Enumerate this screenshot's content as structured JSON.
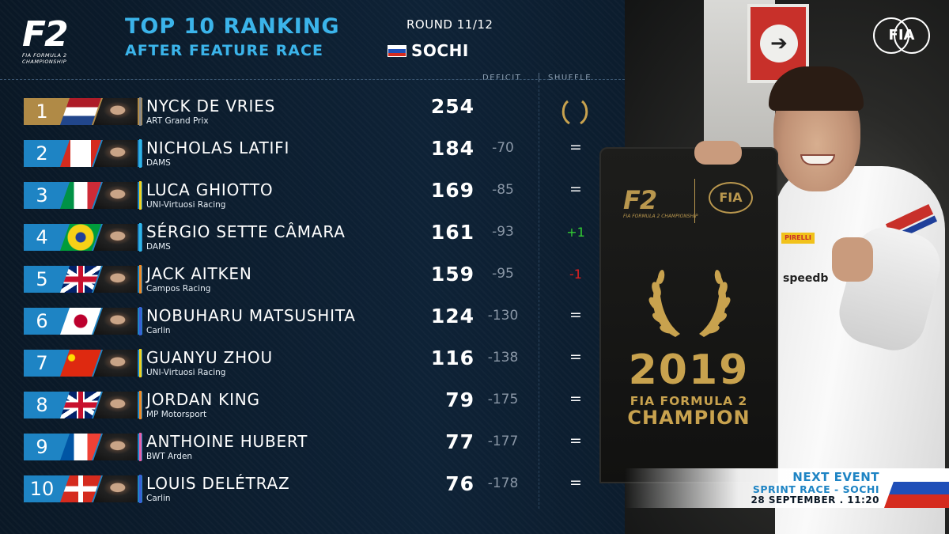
{
  "header": {
    "logo_mark": "F2",
    "logo_sub": "FIA FORMULA 2 CHAMPIONSHIP",
    "title": "TOP 10 RANKING",
    "round": "ROUND 11/12",
    "subtitle": "AFTER FEATURE RACE",
    "venue": "SOCHI",
    "fia_logo": "FIA"
  },
  "columns": {
    "deficit": "DEFICIT",
    "shuffle": "SHUFFLE"
  },
  "colors": {
    "accent": "#3bb4ea",
    "position_box": "#1e84c4",
    "leader_box": "#b08a46",
    "up": "#33cc33",
    "down": "#e02020"
  },
  "drivers": [
    {
      "pos": "1",
      "name": "NYCK DE VRIES",
      "team": "ART Grand Prix",
      "points": "254",
      "deficit": "",
      "shuffle": "",
      "shuffle_icon": "laurel-icon",
      "flag": "NL",
      "team_color": "#8a8a8a"
    },
    {
      "pos": "2",
      "name": "NICHOLAS LATIFI",
      "team": "DAMS",
      "points": "184",
      "deficit": "-70",
      "shuffle": "=",
      "flag": "CA",
      "team_color": "#31b6e6"
    },
    {
      "pos": "3",
      "name": "LUCA GHIOTTO",
      "team": "UNI-Virtuosi Racing",
      "points": "169",
      "deficit": "-85",
      "shuffle": "=",
      "flag": "IT",
      "team_color": "#f2d21c"
    },
    {
      "pos": "4",
      "name": "SÉRGIO SETTE CÂMARA",
      "team": "DAMS",
      "points": "161",
      "deficit": "-93",
      "shuffle": "+1",
      "flag": "BR",
      "team_color": "#31b6e6"
    },
    {
      "pos": "5",
      "name": "JACK AITKEN",
      "team": "Campos Racing",
      "points": "159",
      "deficit": "-95",
      "shuffle": "-1",
      "flag": "GB",
      "team_color": "#f08a24"
    },
    {
      "pos": "6",
      "name": "NOBUHARU MATSUSHITA",
      "team": "Carlin",
      "points": "124",
      "deficit": "-130",
      "shuffle": "=",
      "flag": "JP",
      "team_color": "#3b5fd6"
    },
    {
      "pos": "7",
      "name": "GUANYU ZHOU",
      "team": "UNI-Virtuosi Racing",
      "points": "116",
      "deficit": "-138",
      "shuffle": "=",
      "flag": "CN",
      "team_color": "#f2d21c"
    },
    {
      "pos": "8",
      "name": "JORDAN KING",
      "team": "MP Motorsport",
      "points": "79",
      "deficit": "-175",
      "shuffle": "=",
      "flag": "GB",
      "team_color": "#f08a24"
    },
    {
      "pos": "9",
      "name": "ANTHOINE HUBERT",
      "team": "BWT Arden",
      "points": "77",
      "deficit": "-177",
      "shuffle": "=",
      "flag": "FR",
      "team_color": "#e85ea8"
    },
    {
      "pos": "10",
      "name": "LOUIS DELÉTRAZ",
      "team": "Carlin",
      "points": "76",
      "deficit": "-178",
      "shuffle": "=",
      "flag": "CH",
      "team_color": "#3b5fd6"
    }
  ],
  "board": {
    "logo_mark": "F2",
    "logo_sub": "FIA FORMULA 2 CHAMPIONSHIP",
    "fia": "FIA",
    "year": "2019",
    "line1": "FIA FORMULA 2",
    "line2": "CHAMPION"
  },
  "photo": {
    "sponsor": "speedb",
    "pirelli": "PIRELLI",
    "sign_icon": "arrow-right-icon"
  },
  "next_event": {
    "heading": "NEXT EVENT",
    "race": "SPRINT RACE - SOCHI",
    "datetime": "28 SEPTEMBER . 11:20"
  }
}
